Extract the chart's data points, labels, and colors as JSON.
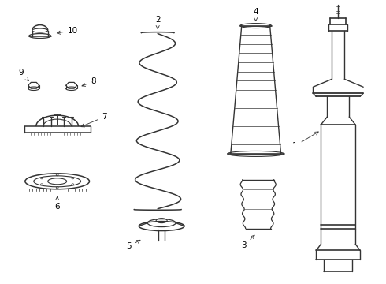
{
  "background_color": "#ffffff",
  "line_color": "#333333",
  "figsize": [
    4.9,
    3.6
  ],
  "dpi": 100,
  "parts": [
    "1",
    "2",
    "3",
    "4",
    "5",
    "6",
    "7",
    "8",
    "9",
    "10"
  ]
}
